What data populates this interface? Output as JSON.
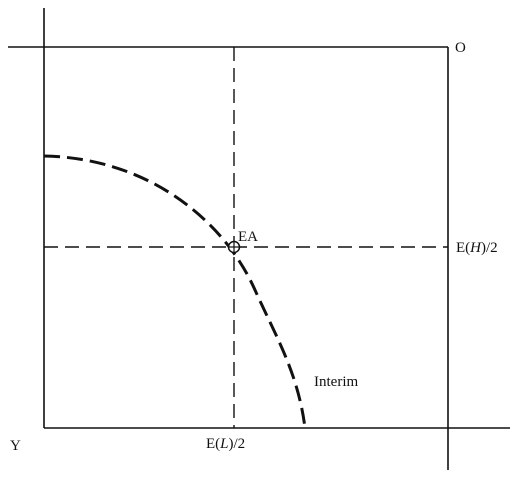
{
  "diagram": {
    "origin_label": "O",
    "corner_label": "Y",
    "point_label": "EA",
    "curve_label": "Interim",
    "y_axis_mark": {
      "prefix": "E(",
      "var": "H",
      "suffix": ")/2"
    },
    "x_axis_mark": {
      "prefix": "E(",
      "var": "L",
      "suffix": ")/2"
    }
  }
}
